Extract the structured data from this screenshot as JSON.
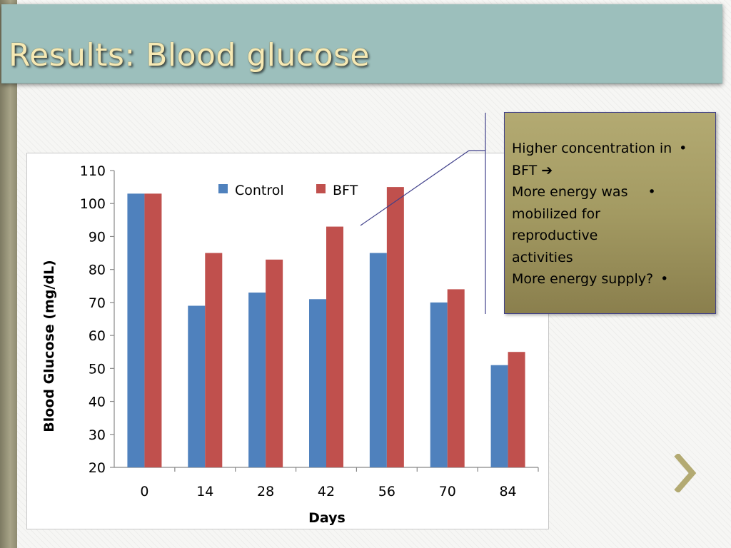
{
  "slide": {
    "title": "Results: Blood glucose"
  },
  "callout": {
    "lines": [
      "Higher concentration in",
      "BFT",
      "More energy was",
      "mobilized for",
      "reproductive",
      "activities",
      "More energy supply?"
    ],
    "arrow_symbol": "➔",
    "bullet_symbol": "•"
  },
  "nav": {
    "next_icon": "chevron-right-icon"
  },
  "chart_data": {
    "type": "bar",
    "xlabel": "Days",
    "ylabel": "Blood Glucose (mg/dL)",
    "categories": [
      "0",
      "14",
      "28",
      "42",
      "56",
      "70",
      "84"
    ],
    "ylim": [
      20,
      110
    ],
    "yticks": [
      20,
      30,
      40,
      50,
      60,
      70,
      80,
      90,
      100,
      110
    ],
    "grid": false,
    "legend": "top-center",
    "series": [
      {
        "name": "Control",
        "color": "#4f81bd",
        "values": [
          103,
          69,
          73,
          71,
          85,
          70,
          51
        ]
      },
      {
        "name": "BFT",
        "color": "#c0504d",
        "values": [
          103,
          85,
          83,
          93,
          105,
          74,
          55
        ]
      }
    ]
  }
}
